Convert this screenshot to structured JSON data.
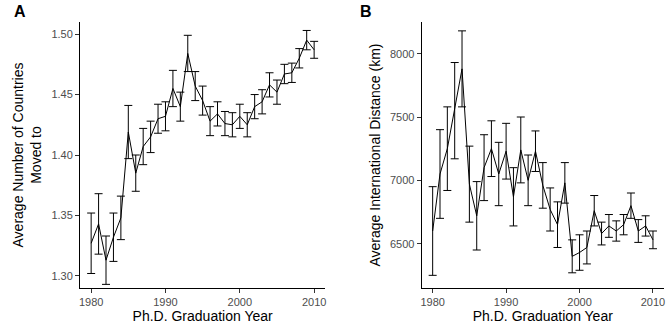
{
  "chart_data": [
    {
      "type": "line",
      "title": "A",
      "xlabel": "Ph.D. Graduation Year",
      "ylabel": "Average Number of Countries\nMoved to",
      "x": [
        1980,
        1981,
        1982,
        1983,
        1984,
        1985,
        1986,
        1987,
        1988,
        1989,
        1990,
        1991,
        1992,
        1993,
        1994,
        1995,
        1996,
        1997,
        1998,
        1999,
        2000,
        2001,
        2002,
        2003,
        2004,
        2005,
        2006,
        2007,
        2008,
        2009,
        2010
      ],
      "values": [
        1.327,
        1.343,
        1.313,
        1.332,
        1.348,
        1.419,
        1.385,
        1.407,
        1.415,
        1.43,
        1.432,
        1.455,
        1.44,
        1.484,
        1.457,
        1.445,
        1.428,
        1.434,
        1.426,
        1.425,
        1.432,
        1.425,
        1.44,
        1.444,
        1.458,
        1.452,
        1.467,
        1.468,
        1.48,
        1.495,
        1.487
      ],
      "error": [
        0.025,
        0.025,
        0.02,
        0.02,
        0.018,
        0.022,
        0.015,
        0.015,
        0.013,
        0.012,
        0.012,
        0.015,
        0.012,
        0.015,
        0.012,
        0.012,
        0.012,
        0.01,
        0.01,
        0.01,
        0.01,
        0.01,
        0.01,
        0.01,
        0.01,
        0.01,
        0.008,
        0.008,
        0.008,
        0.008,
        0.007
      ],
      "color": "#000000",
      "xlim": [
        1978.5,
        2011.5
      ],
      "xticks": [
        1980,
        1990,
        2000,
        2010
      ],
      "ylim": [
        1.29,
        1.51
      ],
      "yticks": [
        {
          "value": 1.3,
          "label": "1.30"
        },
        1.35,
        {
          "value": 1.4,
          "label": "1.40"
        },
        1.45,
        {
          "value": 1.5,
          "label": "1.50"
        }
      ],
      "grid": false
    },
    {
      "type": "line",
      "title": "B",
      "xlabel": "Ph.D. Graduation Year",
      "ylabel": "Average International Distance (km)",
      "x": [
        1980,
        1981,
        1982,
        1983,
        1984,
        1985,
        1986,
        1987,
        1988,
        1989,
        1990,
        1991,
        1992,
        1993,
        1994,
        1995,
        1996,
        1997,
        1998,
        1999,
        2000,
        2001,
        2002,
        2003,
        2004,
        2005,
        2006,
        2007,
        2008,
        2009,
        2010
      ],
      "values": [
        6600,
        7050,
        7250,
        7550,
        7880,
        6970,
        6720,
        7100,
        7250,
        7050,
        7230,
        6870,
        7240,
        7000,
        7230,
        6960,
        6770,
        6650,
        6980,
        6400,
        6430,
        6470,
        6760,
        6580,
        6640,
        6600,
        6650,
        6800,
        6600,
        6640,
        6530
      ],
      "error": [
        350,
        350,
        330,
        380,
        300,
        300,
        270,
        260,
        220,
        250,
        220,
        230,
        260,
        200,
        160,
        180,
        170,
        180,
        160,
        130,
        140,
        130,
        120,
        90,
        90,
        80,
        80,
        100,
        90,
        80,
        70
      ],
      "color": "#000000",
      "xlim": [
        1978.5,
        2011.5
      ],
      "xticks": [
        1980,
        1990,
        2000,
        2010
      ],
      "ylim": [
        6150,
        8250
      ],
      "yticks": [
        6500,
        7000,
        7500,
        8000
      ],
      "grid": false
    }
  ]
}
